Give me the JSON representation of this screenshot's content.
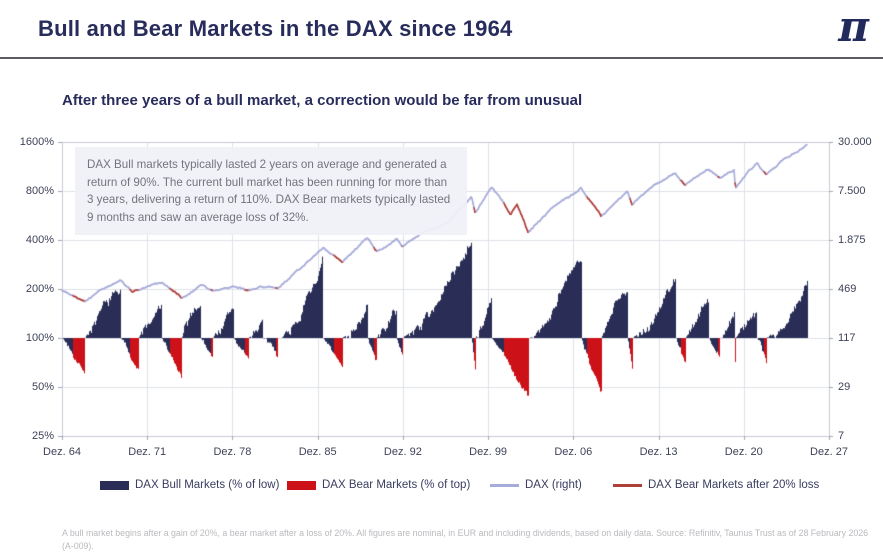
{
  "header": {
    "title": "Bull and Bear Markets in the DAX since 1964",
    "logo": "π"
  },
  "subtitle": "After three years of a bull market, a correction would be far from unusual",
  "annotation": "DAX Bull markets typically lasted 2 years on average and generated a return of 90%. The current bull market has been running for more than 3 years, delivering a return of 110%. DAX Bear markets typically lasted 9 months and saw an average loss of 32%.",
  "footnote": "A bull market begins after a gain of 20%, a bear market after a loss of 20%. All figures are nominal, in EUR and including dividends, based on daily data. Source: Refinitiv, Taunus Trust as of 28 February 2026 (A-009).",
  "colors": {
    "navy": "#2a2e57",
    "red": "#cc1118",
    "dax_line": "#a7abd9",
    "bear_line": "#ae403c",
    "grid": "#dfe0e8",
    "axis_border": "#c9cad4",
    "tick": "#a5a6b0",
    "title": "#272c5c"
  },
  "chart_data": {
    "type": "area",
    "title": "Bull and Bear Markets in the DAX since 1964",
    "series": [
      {
        "name": "DAX Bull Markets (% of low)",
        "style": "area",
        "color": "#2a2e57",
        "axis": "left"
      },
      {
        "name": "DAX Bear Markets (% of top)",
        "style": "area",
        "color": "#cc1118",
        "axis": "left"
      },
      {
        "name": "DAX (right)",
        "style": "line",
        "color": "#a7abd9",
        "axis": "right"
      },
      {
        "name": "DAX Bear Markets after 20% loss",
        "style": "line",
        "color": "#ae403c",
        "axis": "right"
      }
    ],
    "left_axis": {
      "scale": "log2",
      "ticks": [
        "1600%",
        "800%",
        "400%",
        "200%",
        "100%",
        "50%",
        "25%"
      ],
      "baseline": "100%"
    },
    "right_axis": {
      "scale": "log4",
      "ticks": [
        "30.000",
        "7.500",
        "1.875",
        "469",
        "117",
        "29",
        "7"
      ]
    },
    "x_axis": {
      "ticks": [
        "Dez. 64",
        "Dez. 71",
        "Dez. 78",
        "Dez. 85",
        "Dez. 92",
        "Dez. 99",
        "Dez. 06",
        "Dez. 13",
        "Dez. 20",
        "Dez. 27"
      ],
      "start_year": 1964.92,
      "end_year": 2027.92,
      "data_end_year": 2026.13
    },
    "segments": [
      {
        "type": "bear",
        "start": 1964.92,
        "end": 1966.8,
        "extreme": 63
      },
      {
        "type": "bull",
        "start": 1966.8,
        "end": 1969.7,
        "extreme": 195
      },
      {
        "type": "bear",
        "start": 1969.7,
        "end": 1971.2,
        "extreme": 64
      },
      {
        "type": "bull",
        "start": 1971.2,
        "end": 1973.1,
        "extreme": 152
      },
      {
        "type": "bear",
        "start": 1973.1,
        "end": 1974.75,
        "extreme": 55
      },
      {
        "type": "bull",
        "start": 1974.75,
        "end": 1976.3,
        "extreme": 168
      },
      {
        "type": "bear",
        "start": 1976.3,
        "end": 1977.3,
        "extreme": 74
      },
      {
        "type": "bull",
        "start": 1977.3,
        "end": 1979.0,
        "extreme": 152
      },
      {
        "type": "bear",
        "start": 1979.0,
        "end": 1980.2,
        "extreme": 72
      },
      {
        "type": "bull",
        "start": 1980.2,
        "end": 1981.4,
        "extreme": 132
      },
      {
        "type": "bear",
        "start": 1981.4,
        "end": 1982.6,
        "extreme": 76
      },
      {
        "type": "bull",
        "start": 1982.6,
        "end": 1986.35,
        "extreme": 300
      },
      {
        "type": "bear",
        "start": 1986.35,
        "end": 1987.95,
        "extreme": 62
      },
      {
        "type": "bull",
        "start": 1987.95,
        "end": 1990.0,
        "extreme": 155
      },
      {
        "type": "bear",
        "start": 1990.0,
        "end": 1990.75,
        "extreme": 69
      },
      {
        "type": "bull",
        "start": 1990.75,
        "end": 1992.4,
        "extreme": 152
      },
      {
        "type": "bear",
        "start": 1992.4,
        "end": 1992.85,
        "extreme": 78
      },
      {
        "type": "bull",
        "start": 1992.85,
        "end": 1998.55,
        "extreme": 430
      },
      {
        "type": "bear",
        "start": 1998.55,
        "end": 1998.85,
        "extreme": 63
      },
      {
        "type": "bull",
        "start": 1998.85,
        "end": 2000.2,
        "extreme": 168
      },
      {
        "type": "bear",
        "start": 2000.2,
        "end": 2003.2,
        "extreme": 42
      },
      {
        "type": "bull",
        "start": 2003.2,
        "end": 2007.55,
        "extreme": 330
      },
      {
        "type": "bear",
        "start": 2007.55,
        "end": 2009.2,
        "extreme": 45
      },
      {
        "type": "bull",
        "start": 2009.2,
        "end": 2011.35,
        "extreme": 205
      },
      {
        "type": "bear",
        "start": 2011.35,
        "end": 2011.75,
        "extreme": 68
      },
      {
        "type": "bull",
        "start": 2011.75,
        "end": 2015.3,
        "extreme": 240
      },
      {
        "type": "bear",
        "start": 2015.3,
        "end": 2016.1,
        "extreme": 72
      },
      {
        "type": "bull",
        "start": 2016.1,
        "end": 2018.05,
        "extreme": 165
      },
      {
        "type": "bear",
        "start": 2018.05,
        "end": 2018.95,
        "extreme": 77
      },
      {
        "type": "bull",
        "start": 2018.95,
        "end": 2020.12,
        "extreme": 138
      },
      {
        "type": "bear",
        "start": 2020.12,
        "end": 2020.23,
        "extreme": 61
      },
      {
        "type": "bull",
        "start": 2020.23,
        "end": 2022.0,
        "extreme": 152
      },
      {
        "type": "bear",
        "start": 2022.0,
        "end": 2022.75,
        "extreme": 74
      },
      {
        "type": "bull",
        "start": 2022.75,
        "end": 2026.13,
        "extreme": 210
      }
    ],
    "dax_line": [
      [
        1964.92,
        450
      ],
      [
        1965.8,
        395
      ],
      [
        1966.8,
        330
      ],
      [
        1968.0,
        470
      ],
      [
        1969.7,
        580
      ],
      [
        1970.7,
        420
      ],
      [
        1971.2,
        445
      ],
      [
        1973.1,
        555
      ],
      [
        1974.75,
        370
      ],
      [
        1976.3,
        520
      ],
      [
        1977.3,
        450
      ],
      [
        1979.0,
        525
      ],
      [
        1980.2,
        465
      ],
      [
        1981.4,
        500
      ],
      [
        1982.6,
        480
      ],
      [
        1984.5,
        820
      ],
      [
        1986.35,
        1550
      ],
      [
        1987.95,
        1000
      ],
      [
        1990.0,
        1950
      ],
      [
        1990.75,
        1350
      ],
      [
        1992.4,
        1900
      ],
      [
        1992.85,
        1520
      ],
      [
        1994.5,
        2300
      ],
      [
        1996.5,
        2900
      ],
      [
        1998.55,
        6200
      ],
      [
        1998.85,
        3900
      ],
      [
        2000.2,
        8100
      ],
      [
        2001.2,
        5300
      ],
      [
        2001.75,
        3800
      ],
      [
        2002.3,
        5300
      ],
      [
        2003.2,
        2250
      ],
      [
        2005.0,
        4300
      ],
      [
        2007.55,
        8100
      ],
      [
        2009.2,
        3700
      ],
      [
        2011.35,
        7600
      ],
      [
        2011.75,
        5200
      ],
      [
        2013.5,
        8500
      ],
      [
        2015.3,
        12400
      ],
      [
        2016.1,
        8900
      ],
      [
        2018.05,
        13550
      ],
      [
        2018.95,
        10400
      ],
      [
        2020.12,
        13800
      ],
      [
        2020.23,
        8400
      ],
      [
        2022.0,
        16300
      ],
      [
        2022.75,
        12100
      ],
      [
        2024.0,
        17500
      ],
      [
        2025.2,
        23000
      ],
      [
        2026.13,
        28000
      ]
    ]
  }
}
